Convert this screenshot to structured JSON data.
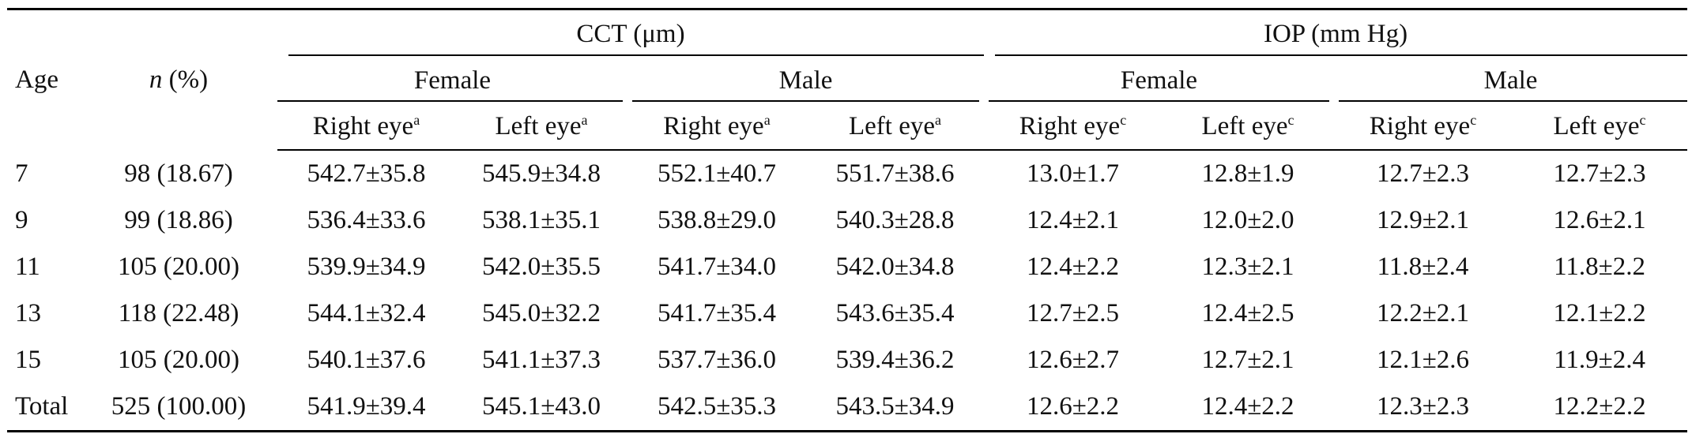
{
  "header": {
    "age": "Age",
    "n_italic": "n",
    "n_rest": " (%)",
    "cct": "CCT (μm)",
    "iop": "IOP (mm Hg)",
    "female": "Female",
    "male": "Male",
    "right_eye": "Right eye",
    "left_eye": "Left eye",
    "sup_a": "a",
    "sup_c": "c"
  },
  "rows": [
    {
      "age": "7",
      "n": "98 (18.67)",
      "cct_f_r": "542.7±35.8",
      "cct_f_l": "545.9±34.8",
      "cct_m_r": "552.1±40.7",
      "cct_m_l": "551.7±38.6",
      "iop_f_r": "13.0±1.7",
      "iop_f_l": "12.8±1.9",
      "iop_m_r": "12.7±2.3",
      "iop_m_l": "12.7±2.3"
    },
    {
      "age": "9",
      "n": "99 (18.86)",
      "cct_f_r": "536.4±33.6",
      "cct_f_l": "538.1±35.1",
      "cct_m_r": "538.8±29.0",
      "cct_m_l": "540.3±28.8",
      "iop_f_r": "12.4±2.1",
      "iop_f_l": "12.0±2.0",
      "iop_m_r": "12.9±2.1",
      "iop_m_l": "12.6±2.1"
    },
    {
      "age": "11",
      "n": "105 (20.00)",
      "cct_f_r": "539.9±34.9",
      "cct_f_l": "542.0±35.5",
      "cct_m_r": "541.7±34.0",
      "cct_m_l": "542.0±34.8",
      "iop_f_r": "12.4±2.2",
      "iop_f_l": "12.3±2.1",
      "iop_m_r": "11.8±2.4",
      "iop_m_l": "11.8±2.2"
    },
    {
      "age": "13",
      "n": "118 (22.48)",
      "cct_f_r": "544.1±32.4",
      "cct_f_l": "545.0±32.2",
      "cct_m_r": "541.7±35.4",
      "cct_m_l": "543.6±35.4",
      "iop_f_r": "12.7±2.5",
      "iop_f_l": "12.4±2.5",
      "iop_m_r": "12.2±2.1",
      "iop_m_l": "12.1±2.2"
    },
    {
      "age": "15",
      "n": "105 (20.00)",
      "cct_f_r": "540.1±37.6",
      "cct_f_l": "541.1±37.3",
      "cct_m_r": "537.7±36.0",
      "cct_m_l": "539.4±36.2",
      "iop_f_r": "12.6±2.7",
      "iop_f_l": "12.7±2.1",
      "iop_m_r": "12.1±2.6",
      "iop_m_l": "11.9±2.4"
    },
    {
      "age": "Total",
      "n": "525 (100.00)",
      "cct_f_r": "541.9±39.4",
      "cct_f_l": "545.1±43.0",
      "cct_m_r": "542.5±35.3",
      "cct_m_l": "543.5±34.9",
      "iop_f_r": "12.6±2.2",
      "iop_f_l": "12.4±2.2",
      "iop_m_r": "12.3±2.3",
      "iop_m_l": "12.2±2.2"
    }
  ]
}
